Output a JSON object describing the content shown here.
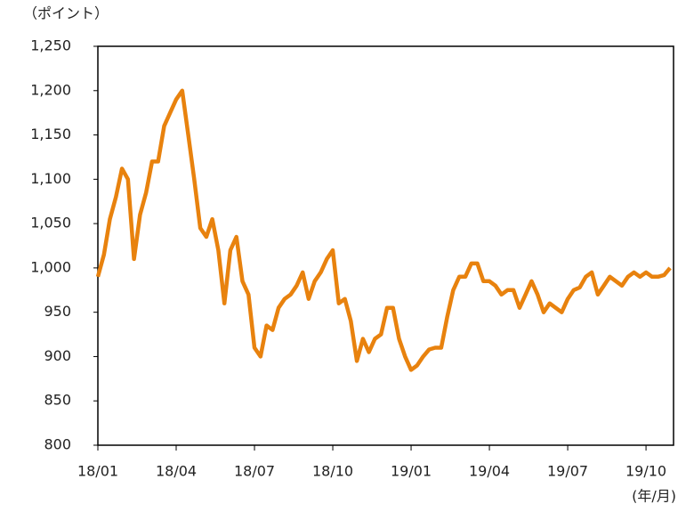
{
  "chart_data": {
    "type": "line",
    "y_label": "（ポイント）",
    "x_label": "(年/月)",
    "categories": [
      "18/01",
      null,
      null,
      null,
      null,
      null,
      null,
      null,
      null,
      null,
      null,
      null,
      null,
      "18/04",
      null,
      null,
      null,
      null,
      null,
      null,
      null,
      null,
      null,
      null,
      null,
      null,
      "18/07",
      null,
      null,
      null,
      null,
      null,
      null,
      null,
      null,
      null,
      null,
      null,
      null,
      "18/10",
      null,
      null,
      null,
      null,
      null,
      null,
      null,
      null,
      null,
      null,
      null,
      null,
      "19/01",
      null,
      null,
      null,
      null,
      null,
      null,
      null,
      null,
      null,
      null,
      null,
      null,
      "19/04",
      null,
      null,
      null,
      null,
      null,
      null,
      null,
      null,
      null,
      null,
      null,
      null,
      "19/07",
      null,
      null,
      null,
      null,
      null,
      null,
      null,
      null,
      null,
      null,
      null,
      null,
      "19/10",
      null,
      null,
      null,
      null
    ],
    "series": [
      {
        "color": "#e8820e",
        "values": [
          990,
          1015,
          1055,
          1080,
          1112,
          1100,
          1010,
          1060,
          1085,
          1120,
          1120,
          1160,
          1175,
          1190,
          1200,
          1150,
          1100,
          1045,
          1035,
          1055,
          1020,
          960,
          1020,
          1035,
          985,
          970,
          910,
          900,
          935,
          930,
          955,
          965,
          970,
          980,
          995,
          965,
          985,
          995,
          1010,
          1020,
          960,
          965,
          940,
          895,
          920,
          905,
          920,
          925,
          955,
          955,
          920,
          900,
          885,
          890,
          900,
          908,
          910,
          910,
          945,
          975,
          990,
          990,
          1005,
          1005,
          985,
          985,
          980,
          970,
          975,
          975,
          955,
          970,
          985,
          970,
          950,
          960,
          955,
          950,
          965,
          975,
          978,
          990,
          995,
          970,
          980,
          990,
          985,
          980,
          990,
          995,
          990,
          995,
          990,
          990,
          992,
          1000
        ]
      }
    ],
    "ylim": [
      800,
      1250
    ],
    "yticks": [
      800,
      850,
      900,
      950,
      {
        "value": 1000,
        "label": "1,000"
      },
      {
        "value": 1050,
        "label": "1,050"
      },
      {
        "value": 1100,
        "label": "1,100"
      },
      {
        "value": 1150,
        "label": "1,150"
      },
      {
        "value": 1200,
        "label": "1,200"
      },
      {
        "value": 1250,
        "label": "1,250"
      }
    ]
  }
}
